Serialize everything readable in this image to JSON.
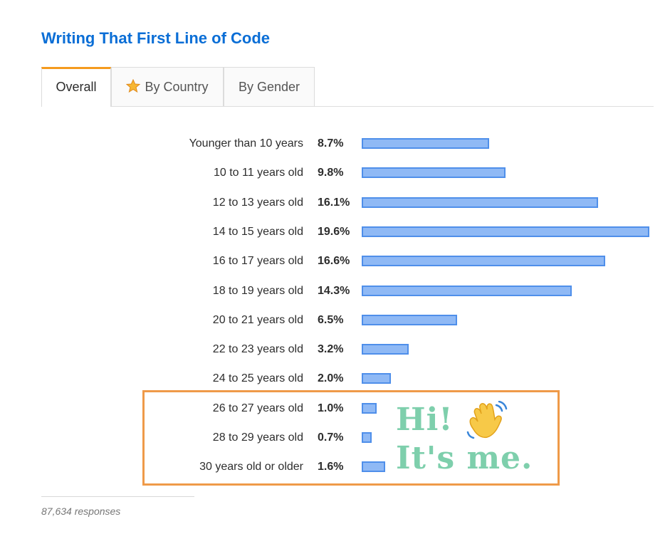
{
  "title": "Writing That First Line of Code",
  "tabs": [
    {
      "label": "Overall",
      "active": true
    },
    {
      "label": "By Country",
      "icon": "star-icon"
    },
    {
      "label": "By Gender"
    }
  ],
  "chart_data": {
    "type": "bar",
    "orientation": "horizontal",
    "categories": [
      "Younger than 10 years",
      "10 to 11 years old",
      "12 to 13 years old",
      "14 to 15 years old",
      "16 to 17 years old",
      "18 to 19 years old",
      "20 to 21 years old",
      "22 to 23 years old",
      "24 to 25 years old",
      "26 to 27 years old",
      "28 to 29 years old",
      "30 years old or older"
    ],
    "values": [
      8.7,
      9.8,
      16.1,
      19.6,
      16.6,
      14.3,
      6.5,
      3.2,
      2.0,
      1.0,
      0.7,
      1.6
    ],
    "value_labels": [
      "8.7%",
      "9.8%",
      "16.1%",
      "19.6%",
      "16.6%",
      "14.3%",
      "6.5%",
      "3.2%",
      "2.0%",
      "1.0%",
      "0.7%",
      "1.6%"
    ],
    "xlim": [
      0,
      19.6
    ],
    "grid": false,
    "bar_color": "#8fb9f5",
    "bar_border_color": "#4f8fea"
  },
  "annotation": {
    "highlight_color": "#ef9a49",
    "line1": "Hi!",
    "line2": "It's me.",
    "icon": "waving-hand-icon",
    "text_color": "#7ecfac"
  },
  "footer": {
    "responses": "87,634 responses"
  },
  "colors": {
    "title": "#0a6ed6",
    "active_tab_accent": "#f59b1e"
  }
}
